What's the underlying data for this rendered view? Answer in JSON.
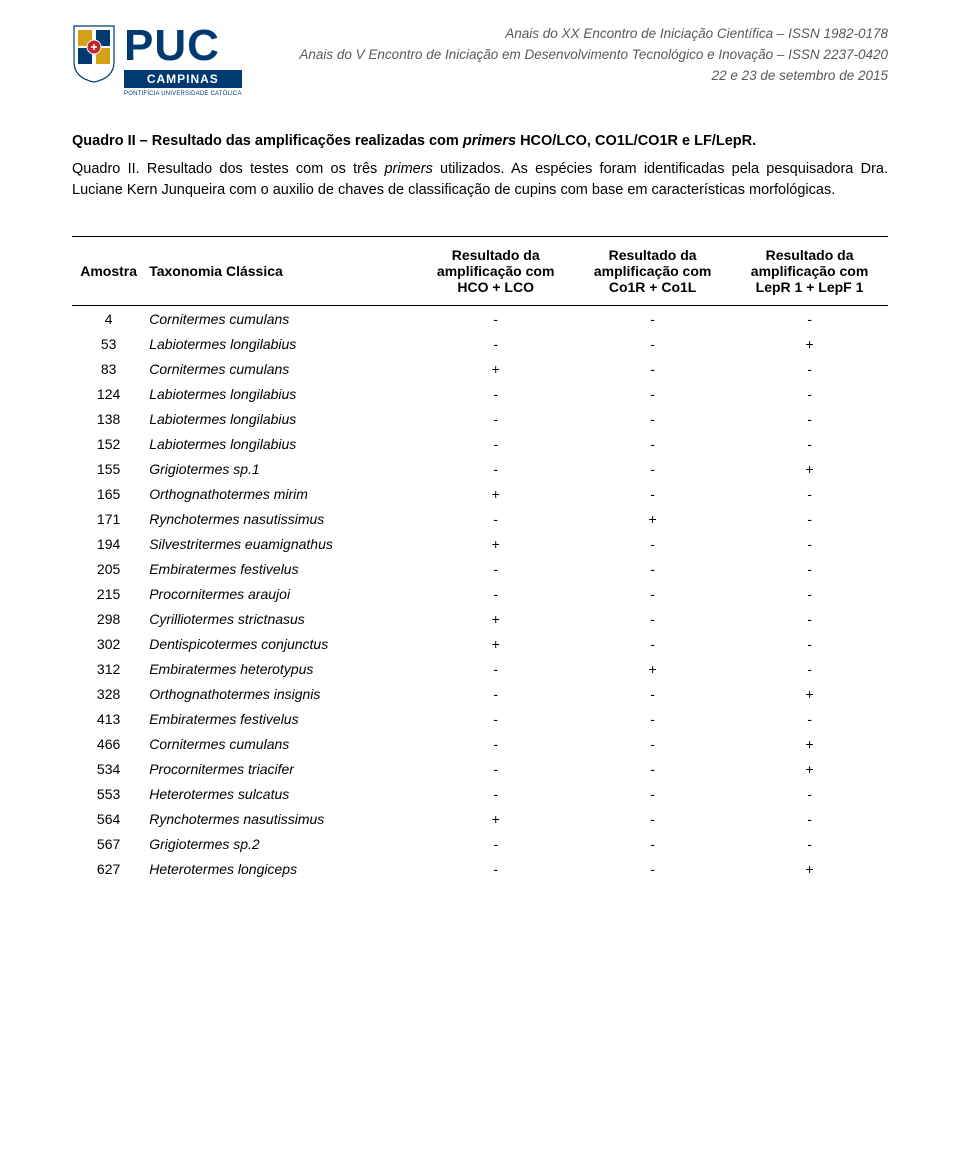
{
  "header": {
    "logo": {
      "big": "PUC",
      "box": "CAMPINAS",
      "sub": "PONTIFÍCIA UNIVERSIDADE CATÓLICA",
      "shield_colors": {
        "gold": "#d4a017",
        "blue": "#003a70",
        "red": "#c1272d",
        "white": "#ffffff"
      }
    },
    "lines": [
      "Anais do XX Encontro de Iniciação Científica – ISSN 1982-0178",
      "Anais do V Encontro de Iniciação em Desenvolvimento Tecnológico e Inovação – ISSN 2237-0420",
      "22 e 23 de setembro de 2015"
    ]
  },
  "title": {
    "bold": "Quadro II – Resultado das amplificações realizadas com ",
    "italic": "primers",
    "rest": " HCO/LCO, CO1L/CO1R e LF/LepR."
  },
  "caption": {
    "p1_a": "Quadro II. Resultado dos testes com os três ",
    "p1_i": "primers",
    "p1_b": " utilizados. As espécies foram identificadas pela pesquisadora Dra. Luciane Kern Junqueira com o auxilio de chaves de classificação de cupins com base em características morfológicas."
  },
  "table": {
    "columns": [
      "Amostra",
      "Taxonomia Clássica",
      "Resultado da amplificação com HCO + LCO",
      "Resultado da amplificação com Co1R + Co1L",
      "Resultado da amplificação com LepR 1 + LepF 1"
    ],
    "rows": [
      [
        "4",
        "Cornitermes cumulans",
        "-",
        "-",
        "-"
      ],
      [
        "53",
        "Labiotermes longilabius",
        "-",
        "-",
        "+"
      ],
      [
        "83",
        "Cornitermes cumulans",
        "+",
        "-",
        "-"
      ],
      [
        "124",
        "Labiotermes longilabius",
        "-",
        "-",
        "-"
      ],
      [
        "138",
        "Labiotermes longilabius",
        "-",
        "-",
        "-"
      ],
      [
        "152",
        "Labiotermes longilabius",
        "-",
        "-",
        "-"
      ],
      [
        "155",
        "Grigiotermes sp.1",
        "-",
        "-",
        "+"
      ],
      [
        "165",
        "Orthognathotermes mirim",
        "+",
        "-",
        "-"
      ],
      [
        "171",
        "Rynchotermes nasutissimus",
        "-",
        "+",
        "-"
      ],
      [
        "194",
        "Silvestritermes euamignathus",
        "+",
        "-",
        "-"
      ],
      [
        "205",
        "Embiratermes festivelus",
        "-",
        "-",
        "-"
      ],
      [
        "215",
        "Procornitermes araujoi",
        "-",
        "-",
        "-"
      ],
      [
        "298",
        "Cyrilliotermes strictnasus",
        "+",
        "-",
        "-"
      ],
      [
        "302",
        "Dentispicotermes conjunctus",
        "+",
        "-",
        "-"
      ],
      [
        "312",
        "Embiratermes heterotypus",
        "-",
        "+",
        "-"
      ],
      [
        "328",
        "Orthognathotermes insignis",
        "-",
        "-",
        "+"
      ],
      [
        "413",
        "Embiratermes festivelus",
        "-",
        "-",
        "-"
      ],
      [
        "466",
        "Cornitermes cumulans",
        "-",
        "-",
        "+"
      ],
      [
        "534",
        "Procornitermes triacifer",
        "-",
        "-",
        "+"
      ],
      [
        "553",
        "Heterotermes sulcatus",
        "-",
        "-",
        "-"
      ],
      [
        "564",
        "Rynchotermes nasutissimus",
        "+",
        "-",
        "-"
      ],
      [
        "567",
        "Grigiotermes sp.2",
        "-",
        "-",
        "-"
      ],
      [
        "627",
        "Heterotermes longiceps",
        "-",
        "-",
        "+"
      ]
    ]
  },
  "colors": {
    "text": "#000000",
    "header_text": "#595959",
    "logo_blue": "#003a70",
    "background": "#ffffff",
    "border": "#000000"
  }
}
